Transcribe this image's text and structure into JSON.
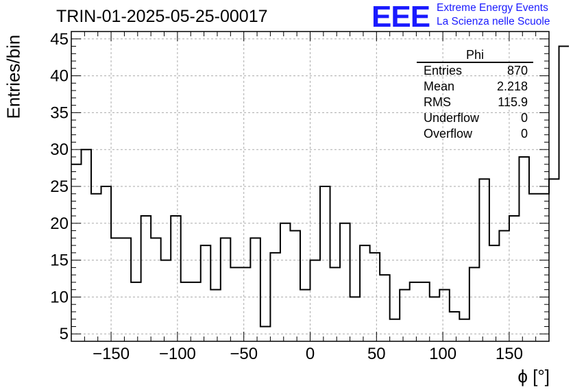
{
  "run_title": "TRIN-01-2025-05-25-00017",
  "logo": {
    "mark": "EEE",
    "line1": "Extreme Energy Events",
    "line2": "La Scienza nelle Scuole",
    "color": "#1a1aff"
  },
  "stats": {
    "title": "Phi",
    "rows": [
      {
        "label": "Entries",
        "value": "870"
      },
      {
        "label": "Mean",
        "value": "2.218"
      },
      {
        "label": "RMS",
        "value": "115.9"
      },
      {
        "label": "Underflow",
        "value": "0"
      },
      {
        "label": "Overflow",
        "value": "0"
      }
    ]
  },
  "chart_data": {
    "type": "bar",
    "style": "step-histogram",
    "xlabel": "ϕ [°]",
    "ylabel": "Entries/bin",
    "xlim": [
      -180,
      180
    ],
    "ylim": [
      4,
      46
    ],
    "bin_width": 7.5,
    "x_ticks": [
      -150,
      -100,
      -50,
      0,
      50,
      100,
      150
    ],
    "x_tick_labels": [
      "−150",
      "−100",
      "−50",
      "0",
      "50",
      "100",
      "150"
    ],
    "y_ticks": [
      5,
      10,
      15,
      20,
      25,
      30,
      35,
      40,
      45
    ],
    "grid": true,
    "values": [
      28,
      30,
      24,
      25,
      18,
      18,
      12,
      21,
      18,
      15,
      21,
      12,
      12,
      17,
      11,
      18,
      14,
      14,
      18,
      6,
      16,
      20,
      19,
      11,
      15,
      25,
      14,
      20,
      10,
      17,
      16,
      13,
      7,
      11,
      12,
      12,
      10,
      11,
      8,
      7,
      14,
      26,
      17,
      19,
      21,
      29,
      24,
      24,
      26,
      44
    ]
  }
}
